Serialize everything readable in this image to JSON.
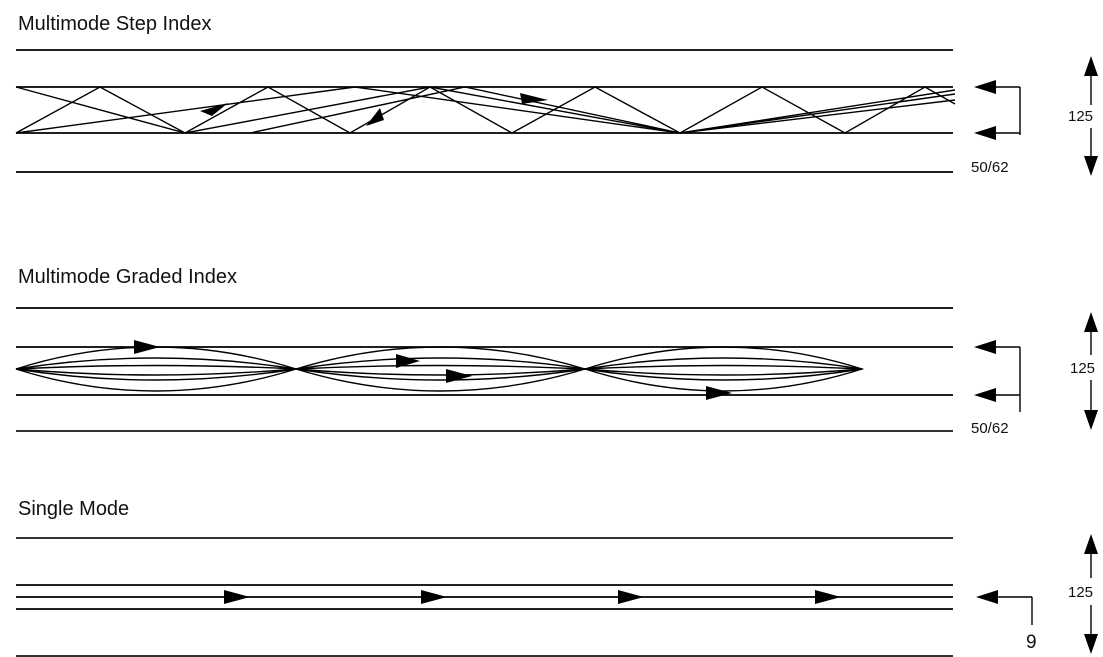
{
  "sections": [
    {
      "title": "Multimode Step Index",
      "core_label": "50/62",
      "cladding_label": "125"
    },
    {
      "title": "Multimode Graded Index",
      "core_label": "50/62",
      "cladding_label": "125"
    },
    {
      "title": "Single Mode",
      "core_label": "9",
      "cladding_label": "125"
    }
  ]
}
